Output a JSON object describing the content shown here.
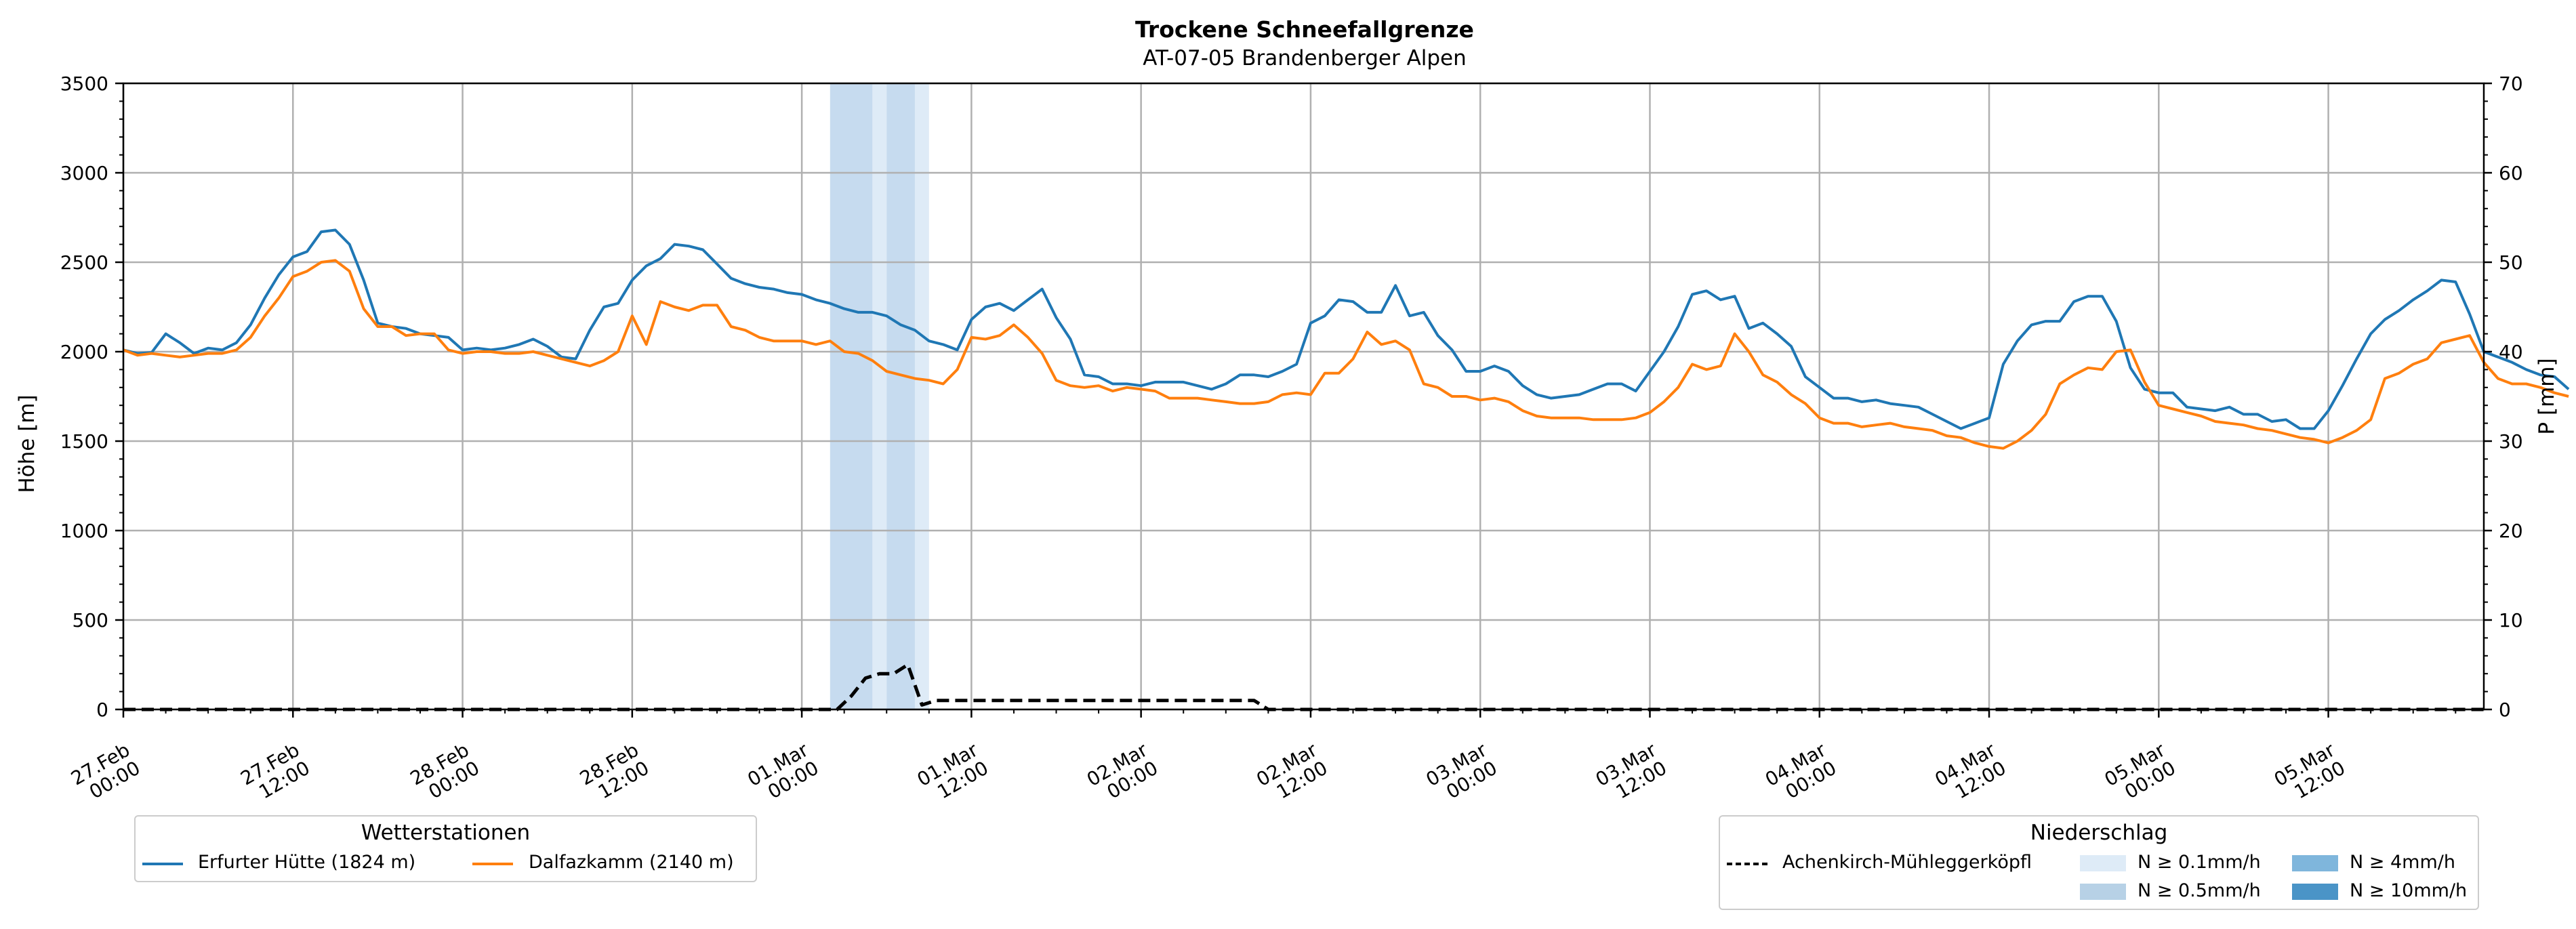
{
  "chart_data": {
    "type": "line",
    "title": "Trockene Schneefallgrenze",
    "subtitle": "AT-07-05 Brandenberger Alpen",
    "ylabel_left": "Höhe [m]",
    "ylabel_right": "P [mm]",
    "ylim_left": [
      0,
      3500
    ],
    "ylim_right": [
      0,
      70
    ],
    "yticks_left": [
      "0",
      "500",
      "1000",
      "1500",
      "2000",
      "2500",
      "3000",
      "3500"
    ],
    "yticks_right": [
      "0",
      "10",
      "20",
      "30",
      "40",
      "50",
      "60",
      "70"
    ],
    "x_unit": "hours since 27.Feb 00:00",
    "xlim_hours": [
      0,
      167
    ],
    "xticks": [
      {
        "h": 0,
        "label1": "27.Feb",
        "label2": "00:00"
      },
      {
        "h": 12,
        "label1": "27.Feb",
        "label2": "12:00"
      },
      {
        "h": 24,
        "label1": "28.Feb",
        "label2": "00:00"
      },
      {
        "h": 36,
        "label1": "28.Feb",
        "label2": "12:00"
      },
      {
        "h": 48,
        "label1": "01.Mar",
        "label2": "00:00"
      },
      {
        "h": 60,
        "label1": "01.Mar",
        "label2": "12:00"
      },
      {
        "h": 72,
        "label1": "02.Mar",
        "label2": "00:00"
      },
      {
        "h": 84,
        "label1": "02.Mar",
        "label2": "12:00"
      },
      {
        "h": 96,
        "label1": "03.Mar",
        "label2": "00:00"
      },
      {
        "h": 108,
        "label1": "03.Mar",
        "label2": "12:00"
      },
      {
        "h": 120,
        "label1": "04.Mar",
        "label2": "00:00"
      },
      {
        "h": 132,
        "label1": "04.Mar",
        "label2": "12:00"
      },
      {
        "h": 144,
        "label1": "05.Mar",
        "label2": "00:00"
      },
      {
        "h": 156,
        "label1": "05.Mar",
        "label2": "12:00"
      }
    ],
    "grid": true,
    "precip_bands": [
      {
        "start_h": 50,
        "end_h": 53,
        "level": "0.5"
      },
      {
        "start_h": 53,
        "end_h": 54,
        "level": "0.1"
      },
      {
        "start_h": 54,
        "end_h": 56,
        "level": "0.5"
      },
      {
        "start_h": 56,
        "end_h": 57,
        "level": "0.1"
      }
    ],
    "series": [
      {
        "name": "Erfurter Hütte (1824 m)",
        "color": "#1f77b4",
        "x_step_hours": 1,
        "values": [
          2010,
          1990,
          1995,
          2100,
          2050,
          1990,
          2020,
          2010,
          2050,
          2150,
          2300,
          2430,
          2530,
          2560,
          2670,
          2680,
          2600,
          2400,
          2160,
          2140,
          2130,
          2100,
          2090,
          2080,
          2010,
          2020,
          2010,
          2020,
          2040,
          2070,
          2030,
          1970,
          1960,
          2120,
          2250,
          2270,
          2400,
          2480,
          2520,
          2600,
          2590,
          2570,
          2490,
          2410,
          2380,
          2360,
          2350,
          2330,
          2320,
          2290,
          2270,
          2240,
          2220,
          2220,
          2200,
          2150,
          2120,
          2060,
          2040,
          2010,
          2180,
          2250,
          2270,
          2230,
          2290,
          2350,
          2190,
          2070,
          1870,
          1860,
          1820,
          1820,
          1810,
          1830,
          1830,
          1830,
          1810,
          1790,
          1820,
          1870,
          1870,
          1860,
          1890,
          1930,
          2160,
          2200,
          2290,
          2280,
          2220,
          2220,
          2370,
          2200,
          2220,
          2090,
          2010,
          1890,
          1890,
          1920,
          1890,
          1810,
          1760,
          1740,
          1750,
          1760,
          1790,
          1820,
          1820,
          1780,
          1890,
          2000,
          2140,
          2320,
          2340,
          2290,
          2310,
          2130,
          2160,
          2100,
          2030,
          1860,
          1800,
          1740,
          1740,
          1720,
          1730,
          1710,
          1700,
          1690,
          1650,
          1610,
          1570,
          1600,
          1630,
          1930,
          2060,
          2150,
          2170,
          2170,
          2280,
          2310,
          2310,
          2170,
          1910,
          1790,
          1770,
          1770,
          1690,
          1680,
          1670,
          1690,
          1650,
          1650,
          1610,
          1620,
          1570,
          1570,
          1670,
          1810,
          1960,
          2100,
          2180,
          2230,
          2290,
          2340,
          2400,
          2390,
          2210,
          2000,
          1970,
          1940,
          1900,
          1870,
          1860,
          1790
        ]
      },
      {
        "name": "Dalfazkamm (2140 m)",
        "color": "#ff7f0e",
        "x_step_hours": 1,
        "values": [
          2010,
          1980,
          1990,
          1980,
          1970,
          1980,
          1990,
          1990,
          2010,
          2080,
          2200,
          2300,
          2420,
          2450,
          2500,
          2510,
          2450,
          2240,
          2140,
          2140,
          2090,
          2100,
          2100,
          2010,
          1990,
          2000,
          2000,
          1990,
          1990,
          2000,
          1980,
          1960,
          1940,
          1920,
          1950,
          2000,
          2200,
          2040,
          2280,
          2250,
          2230,
          2260,
          2260,
          2140,
          2120,
          2080,
          2060,
          2060,
          2060,
          2040,
          2060,
          2000,
          1990,
          1950,
          1890,
          1870,
          1850,
          1840,
          1820,
          1900,
          2080,
          2070,
          2090,
          2150,
          2080,
          1990,
          1840,
          1810,
          1800,
          1810,
          1780,
          1800,
          1790,
          1780,
          1740,
          1740,
          1740,
          1730,
          1720,
          1710,
          1710,
          1720,
          1760,
          1770,
          1760,
          1880,
          1880,
          1960,
          2110,
          2040,
          2060,
          2010,
          1820,
          1800,
          1750,
          1750,
          1730,
          1740,
          1720,
          1670,
          1640,
          1630,
          1630,
          1630,
          1620,
          1620,
          1620,
          1630,
          1660,
          1720,
          1800,
          1930,
          1900,
          1920,
          2100,
          2000,
          1870,
          1830,
          1760,
          1710,
          1630,
          1600,
          1600,
          1580,
          1590,
          1600,
          1580,
          1570,
          1560,
          1530,
          1520,
          1490,
          1470,
          1460,
          1500,
          1560,
          1650,
          1820,
          1870,
          1910,
          1900,
          2000,
          2010,
          1830,
          1700,
          1680,
          1660,
          1640,
          1610,
          1600,
          1590,
          1570,
          1560,
          1540,
          1520,
          1510,
          1490,
          1520,
          1560,
          1620,
          1850,
          1880,
          1930,
          1960,
          2050,
          2070,
          2090,
          1940,
          1850,
          1820,
          1820,
          1800,
          1770,
          1750
        ]
      },
      {
        "name": "Achenkirch-Mühleggerköpfl",
        "color": "#000000",
        "axis": "right",
        "dashed": true,
        "points": [
          [
            0,
            0
          ],
          [
            50.5,
            0
          ],
          [
            51.5,
            1.5
          ],
          [
            52.5,
            3.5
          ],
          [
            53.5,
            4
          ],
          [
            54.5,
            4
          ],
          [
            55.5,
            5
          ],
          [
            56.5,
            0.5
          ],
          [
            57.5,
            1
          ],
          [
            60,
            1
          ],
          [
            70,
            1
          ],
          [
            75,
            1
          ],
          [
            80,
            1
          ],
          [
            81,
            0
          ],
          [
            167,
            0
          ]
        ]
      }
    ],
    "colors": {
      "precip_0_1": "#deebf7",
      "precip_0_5": "#c6dbef",
      "precip_4": "#6baed6",
      "precip_10": "#2171b5",
      "grid": "#b0b0b0"
    }
  },
  "legend_stations": {
    "title": "Wetterstationen",
    "items": [
      "Erfurter Hütte (1824 m)",
      "Dalfazkamm (2140 m)"
    ]
  },
  "legend_precip": {
    "title": "Niederschlag",
    "station": "Achenkirch-Mühleggerköpfl",
    "items": [
      "N ≥ 0.1mm/h",
      "N ≥ 0.5mm/h",
      "N ≥ 4mm/h",
      "N ≥ 10mm/h"
    ]
  }
}
